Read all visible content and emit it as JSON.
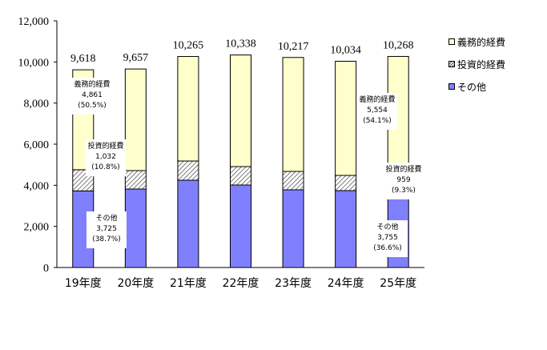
{
  "chart_data": {
    "type": "bar",
    "stacked": true,
    "title": "",
    "xlabel": "",
    "ylabel": "",
    "ylim": [
      0,
      12000
    ],
    "yticks": [
      "0",
      "2,000",
      "4,000",
      "6,000",
      "8,000",
      "10,000",
      "12,000"
    ],
    "categories": [
      "19年度",
      "20年度",
      "21年度",
      "22年度",
      "23年度",
      "24年度",
      "25年度"
    ],
    "series": [
      {
        "name": "その他",
        "color": "#8080ff",
        "values": [
          3725,
          3818,
          4246,
          4013,
          3779,
          3740,
          3755
        ]
      },
      {
        "name": "投資的経費",
        "color": "#ffffff",
        "pattern": "hatch",
        "values": [
          1032,
          896,
          935,
          896,
          896,
          740,
          959
        ]
      },
      {
        "name": "義務的経費",
        "color": "#ffffcc",
        "values": [
          4861,
          4943,
          5084,
          5429,
          5542,
          5554,
          5554
        ]
      }
    ],
    "totals": [
      9618,
      9657,
      10265,
      10338,
      10217,
      10034,
      10268
    ],
    "total_labels": [
      "9,618",
      "9,657",
      "10,265",
      "10,338",
      "10,217",
      "10,034",
      "10,268"
    ],
    "legend": {
      "position": "right",
      "entries": [
        "義務的経費",
        "投資的経費",
        "その他"
      ]
    },
    "grid": false,
    "annotations": [
      {
        "category": "19年度",
        "series": "義務的経費",
        "lines": [
          "義務的経費",
          "4,861",
          "(50.5%)"
        ]
      },
      {
        "category": "19年度",
        "series": "投資的経費",
        "lines": [
          "投資的経費",
          "1,032",
          "(10.8%)"
        ]
      },
      {
        "category": "19年度",
        "series": "その他",
        "lines": [
          "その他",
          "3,725",
          "(38.7%)"
        ]
      },
      {
        "category": "25年度",
        "series": "義務的経費",
        "lines": [
          "義務的経費",
          "5,554",
          "(54.1%)"
        ]
      },
      {
        "category": "25年度",
        "series": "投資的経費",
        "lines": [
          "投資的経費",
          "959",
          "(9.3%)"
        ]
      },
      {
        "category": "25年度",
        "series": "その他",
        "lines": [
          "その他",
          "3,755",
          "(36.6%)"
        ]
      }
    ]
  },
  "legend": {
    "duty": "義務的経費",
    "investment": "投資的経費",
    "other": "その他"
  }
}
